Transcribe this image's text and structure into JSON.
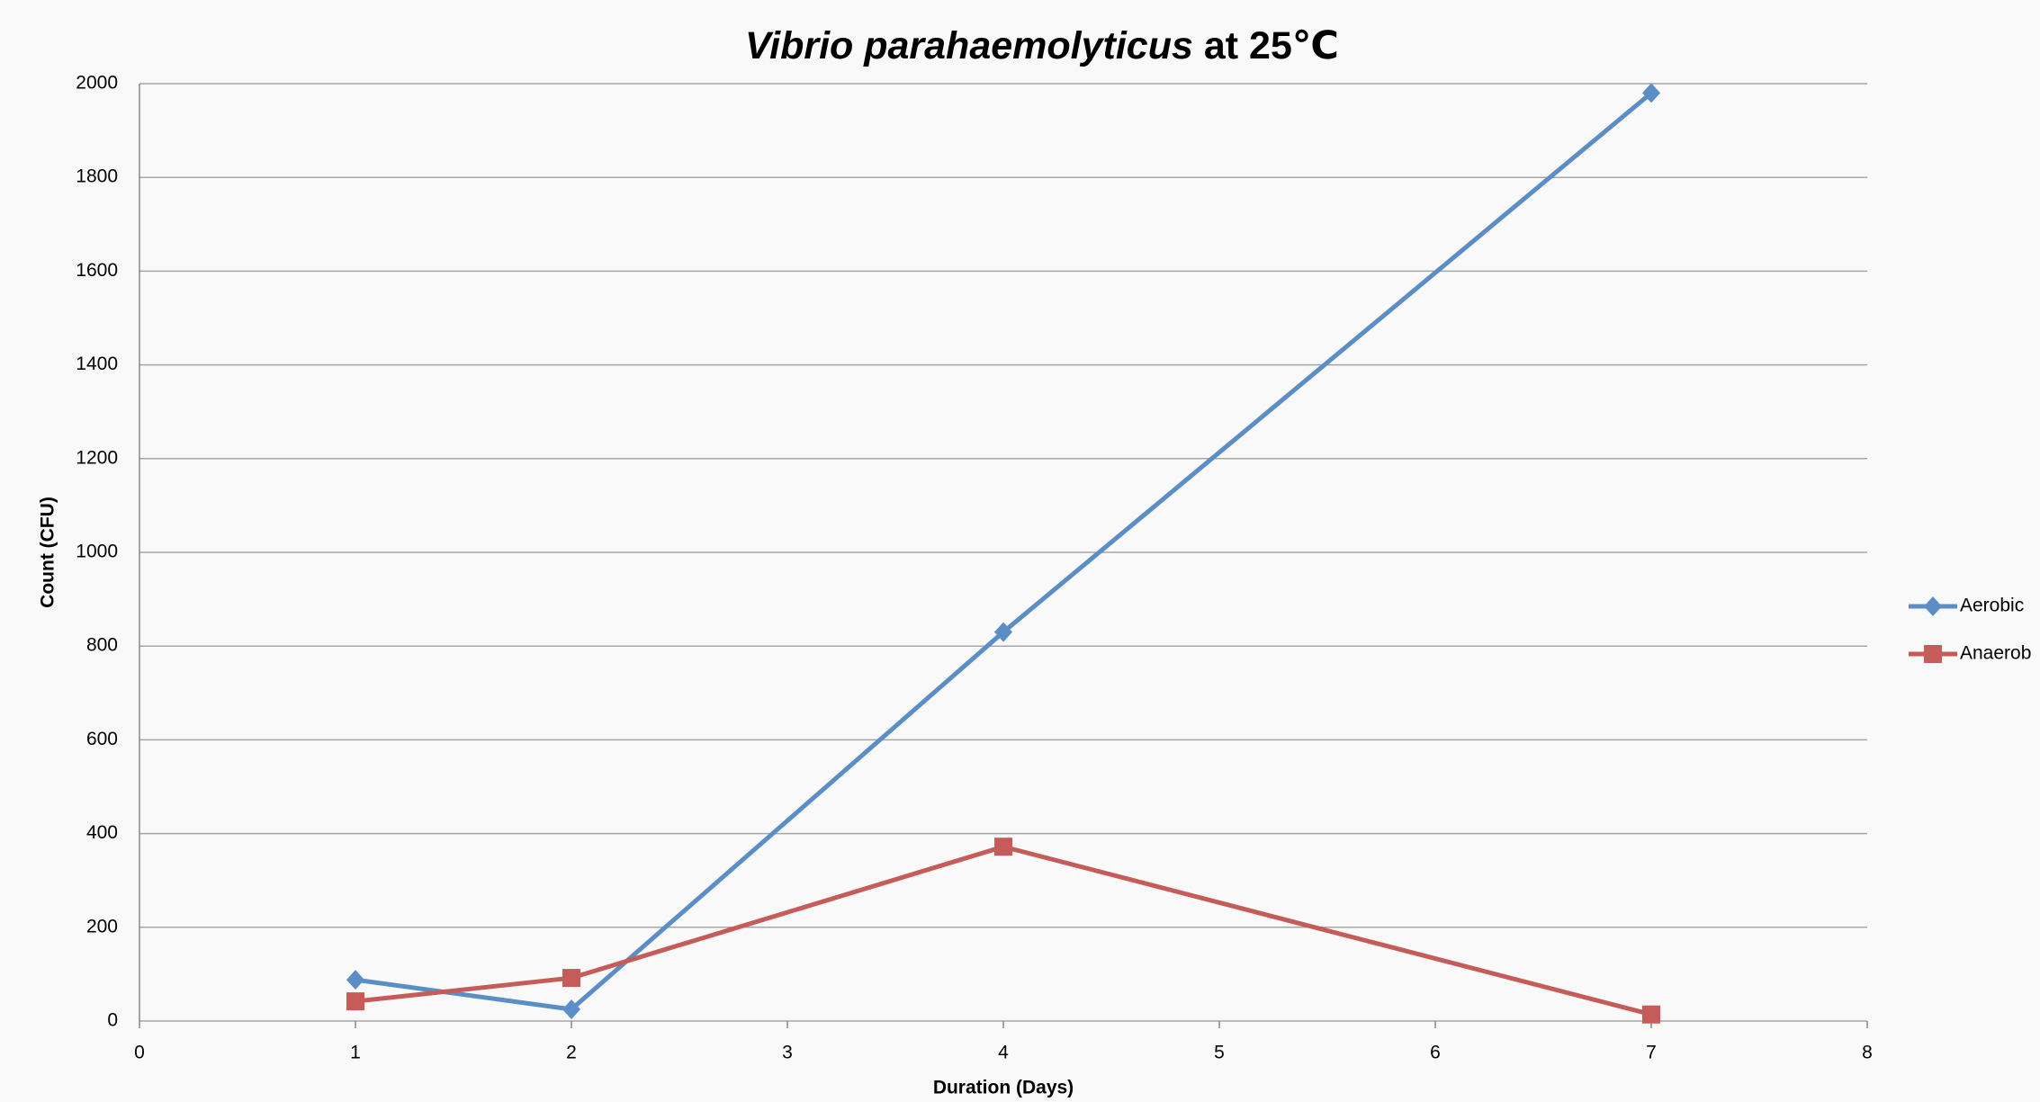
{
  "chart_data": {
    "type": "line",
    "title": [
      "Vibrio parahaemolyticus",
      "at 25℃"
    ],
    "x_label": "Duration (Days)",
    "y_label": "Count (CFU)",
    "x": [
      1,
      2,
      4,
      7
    ],
    "series": [
      {
        "name": "Aerobic",
        "color": "#5b8ec7",
        "marker": "diamond",
        "values": [
          88,
          25,
          830,
          1980
        ]
      },
      {
        "name": "Anaerob",
        "color": "#c65c59",
        "marker": "square",
        "values": [
          42,
          92,
          372,
          14
        ]
      }
    ],
    "xlim": [
      0,
      8
    ],
    "xticks": [
      0,
      1,
      2,
      3,
      4,
      5,
      6,
      7,
      8
    ],
    "ylim": [
      0,
      2000
    ],
    "yticks": [
      0,
      200,
      400,
      600,
      800,
      1000,
      1200,
      1400,
      1600,
      1800,
      2000
    ],
    "grid": true,
    "legend": "right"
  }
}
